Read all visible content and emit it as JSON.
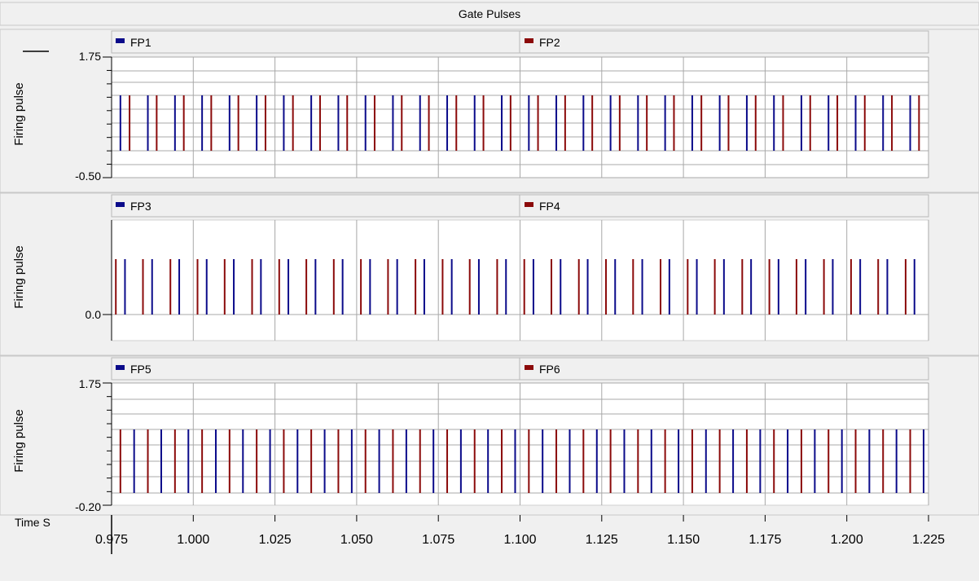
{
  "window_title": "Gate Pulses",
  "x_axis": {
    "label": "Time S",
    "min": 0.975,
    "max": 1.225,
    "ticks": [
      "0.975",
      "1.000",
      "1.025",
      "1.050",
      "1.075",
      "1.100",
      "1.125",
      "1.150",
      "1.175",
      "1.200",
      "1.225"
    ]
  },
  "colors": {
    "blue": "#0a0a8a",
    "red": "#8b0a0a",
    "grid": "#a8a8a8",
    "background": "#f0f0f0",
    "plot": "#ffffff"
  },
  "chart_data": [
    {
      "type": "line",
      "ylabel": "Firing pulse",
      "ylim": [
        -0.5,
        1.75
      ],
      "yticks": [
        "1.75",
        "-0.50"
      ],
      "grid": true,
      "series": [
        {
          "name": "FP1",
          "color": "#0a0a8a",
          "low": 0,
          "high": 1,
          "pulse_start_times": [
            0.9777,
            0.9861,
            0.9944,
            1.0027,
            1.0111,
            1.0194,
            1.0277,
            1.0361,
            1.0444,
            1.0527,
            1.0611,
            1.0694,
            1.0777,
            1.0861,
            1.0944,
            1.1027,
            1.1111,
            1.1194,
            1.1277,
            1.1361,
            1.1444,
            1.1527,
            1.1611,
            1.1694,
            1.1777,
            1.1861,
            1.1944,
            1.2027,
            1.2111,
            1.2194
          ]
        },
        {
          "name": "FP2",
          "color": "#8b0a0a",
          "low": 0,
          "high": 1,
          "pulse_start_times": [
            0.9805,
            0.9888,
            0.9971,
            1.0055,
            1.0138,
            1.0221,
            1.0305,
            1.0388,
            1.0471,
            1.0555,
            1.0638,
            1.0721,
            1.0805,
            1.0888,
            1.0971,
            1.1055,
            1.1138,
            1.1221,
            1.1305,
            1.1388,
            1.1471,
            1.1555,
            1.1638,
            1.1721,
            1.1805,
            1.1888,
            1.1971,
            1.2055,
            1.2138,
            1.2221
          ]
        }
      ]
    },
    {
      "type": "line",
      "ylabel": "Firing pulse",
      "ylim": [
        -0.5,
        1.75
      ],
      "yticks": [
        "0.0"
      ],
      "grid": true,
      "series": [
        {
          "name": "FP3",
          "color": "#0a0a8a",
          "low": 0,
          "high": 1,
          "pulse_start_times": [
            0.9791,
            0.9874,
            0.9957,
            1.0041,
            1.0124,
            1.0207,
            1.0291,
            1.0374,
            1.0457,
            1.0541,
            1.0624,
            1.0707,
            1.0791,
            1.0874,
            1.0957,
            1.1041,
            1.1124,
            1.1207,
            1.1291,
            1.1374,
            1.1457,
            1.1541,
            1.1624,
            1.1707,
            1.1791,
            1.1874,
            1.1957,
            1.2041,
            1.2124,
            1.2207
          ]
        },
        {
          "name": "FP4",
          "color": "#8b0a0a",
          "low": 0,
          "high": 1,
          "pulse_start_times": [
            0.9763,
            0.9846,
            0.993,
            1.0013,
            1.0096,
            1.018,
            1.0263,
            1.0346,
            1.043,
            1.0513,
            1.0596,
            1.068,
            1.0763,
            1.0846,
            1.093,
            1.1013,
            1.1096,
            1.118,
            1.1263,
            1.1346,
            1.143,
            1.1513,
            1.1596,
            1.168,
            1.1763,
            1.1846,
            1.193,
            1.2013,
            1.2096,
            1.218
          ]
        }
      ]
    },
    {
      "type": "line",
      "ylabel": "Firing pulse",
      "ylim": [
        -0.2,
        1.75
      ],
      "yticks": [
        "1.75",
        "-0.20"
      ],
      "grid": true,
      "series": [
        {
          "name": "FP5",
          "color": "#0a0a8a",
          "low": 0,
          "high": 1,
          "pulse_start_times": [
            0.9819,
            0.9902,
            0.9985,
            1.0069,
            1.0152,
            1.0235,
            1.0319,
            1.0402,
            1.0485,
            1.0569,
            1.0652,
            1.0735,
            1.0819,
            1.0902,
            1.0985,
            1.1069,
            1.1152,
            1.1235,
            1.1319,
            1.1402,
            1.1485,
            1.1569,
            1.1652,
            1.1735,
            1.1819,
            1.1902,
            1.1985,
            1.2069,
            1.2152,
            1.2235
          ]
        },
        {
          "name": "FP6",
          "color": "#8b0a0a",
          "low": 0,
          "high": 1,
          "pulse_start_times": [
            0.9777,
            0.9861,
            0.9944,
            1.0027,
            1.0111,
            1.0194,
            1.0277,
            1.0361,
            1.0444,
            1.0527,
            1.0611,
            1.0694,
            1.0777,
            1.0861,
            1.0944,
            1.1027,
            1.1111,
            1.1194,
            1.1277,
            1.1361,
            1.1444,
            1.1527,
            1.1611,
            1.1694,
            1.1777,
            1.1861,
            1.1944,
            1.2027,
            1.2111,
            1.2194
          ]
        }
      ]
    }
  ]
}
